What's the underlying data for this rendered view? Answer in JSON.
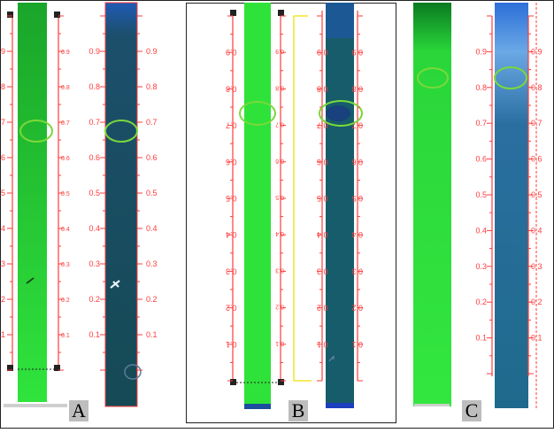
{
  "panels": [
    {
      "label": "A",
      "scale_labels": [
        "0.9",
        "0.8",
        "0.7",
        "0.6",
        "0.5",
        "0.4",
        "0.3",
        "0.2",
        "0.1"
      ],
      "rotated_scale": false,
      "spot_rf": 0.7,
      "strip_colors": [
        "#2fe83a",
        "#154c52"
      ]
    },
    {
      "label": "B",
      "scale_labels": [
        "0.9",
        "0.8",
        "0.7",
        "0.6",
        "0.5",
        "0.4",
        "0.3",
        "0.2",
        "0.1"
      ],
      "rotated_scale": true,
      "spot_rf": 0.74,
      "strip_colors": [
        "#2fe83a",
        "#154c52"
      ]
    },
    {
      "label": "C",
      "scale_labels": [
        "0.9",
        "0.8",
        "0.7",
        "0.6",
        "0.5",
        "0.4",
        "0.3",
        "0.2",
        "0.1"
      ],
      "rotated_scale": false,
      "spot_rf": 0.83,
      "strip_colors": [
        "#2fe83a",
        "#1d5f7d"
      ]
    }
  ],
  "colors": {
    "scale_red": "#ff3b3b",
    "spot_ring": "#7bd83a",
    "panel_border": "#222222",
    "yellow_line": "#f2e52a"
  }
}
